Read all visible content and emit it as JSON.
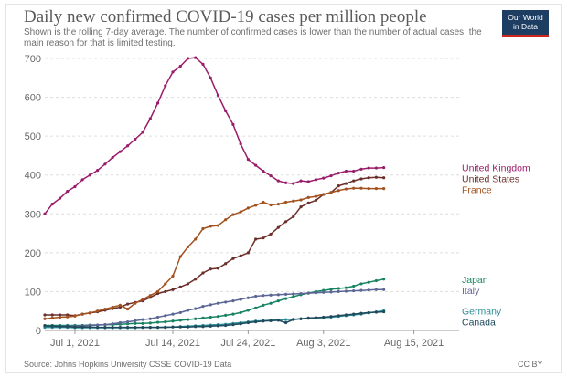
{
  "header": {
    "title": "Daily new confirmed COVID-19 cases per million people",
    "subtitle": "Shown is the rolling 7-day average. The number of confirmed cases is lower than the number of actual cases; the main reason for that is limited testing.",
    "logo_line1": "Our World",
    "logo_line2": "in Data"
  },
  "footer": {
    "source": "Source: Johns Hopkins University CSSE COVID-19 Data",
    "license": "CC BY"
  },
  "chart_data": {
    "type": "line",
    "title": "Daily new confirmed COVID-19 cases per million people",
    "xlabel": "",
    "ylabel": "",
    "ylim": [
      0,
      700
    ],
    "yticks": [
      0,
      100,
      200,
      300,
      400,
      500,
      600,
      700
    ],
    "xlim": [
      0,
      55
    ],
    "xticks": [
      {
        "x": 4,
        "label": "Jul 1, 2021"
      },
      {
        "x": 17,
        "label": "Jul 14, 2021"
      },
      {
        "x": 27,
        "label": "Jul 24, 2021"
      },
      {
        "x": 37,
        "label": "Aug 3, 2021"
      },
      {
        "x": 49,
        "label": "Aug 15, 2021"
      }
    ],
    "series": [
      {
        "name": "United Kingdom",
        "color": "#9a1d6a",
        "points": [
          [
            0,
            300
          ],
          [
            1,
            325
          ],
          [
            2,
            340
          ],
          [
            3,
            358
          ],
          [
            4,
            370
          ],
          [
            5,
            388
          ],
          [
            6,
            400
          ],
          [
            7,
            412
          ],
          [
            8,
            428
          ],
          [
            9,
            445
          ],
          [
            10,
            460
          ],
          [
            11,
            475
          ],
          [
            12,
            492
          ],
          [
            13,
            510
          ],
          [
            14,
            545
          ],
          [
            15,
            585
          ],
          [
            16,
            630
          ],
          [
            17,
            665
          ],
          [
            18,
            680
          ],
          [
            19,
            700
          ],
          [
            20,
            702
          ],
          [
            21,
            685
          ],
          [
            22,
            650
          ],
          [
            23,
            605
          ],
          [
            24,
            565
          ],
          [
            25,
            530
          ],
          [
            26,
            480
          ],
          [
            27,
            440
          ],
          [
            28,
            425
          ],
          [
            29,
            410
          ],
          [
            30,
            398
          ],
          [
            31,
            385
          ],
          [
            32,
            380
          ],
          [
            33,
            378
          ],
          [
            34,
            385
          ],
          [
            35,
            383
          ],
          [
            36,
            388
          ],
          [
            37,
            392
          ],
          [
            38,
            398
          ],
          [
            39,
            405
          ],
          [
            40,
            410
          ],
          [
            41,
            410
          ],
          [
            42,
            415
          ],
          [
            43,
            418
          ],
          [
            44,
            418
          ],
          [
            45,
            419
          ]
        ]
      },
      {
        "name": "United States",
        "color": "#6b2f2a",
        "points": [
          [
            0,
            40
          ],
          [
            1,
            40
          ],
          [
            2,
            40
          ],
          [
            3,
            40
          ],
          [
            4,
            38
          ],
          [
            5,
            42
          ],
          [
            6,
            45
          ],
          [
            7,
            48
          ],
          [
            8,
            52
          ],
          [
            9,
            56
          ],
          [
            10,
            60
          ],
          [
            11,
            68
          ],
          [
            12,
            72
          ],
          [
            13,
            76
          ],
          [
            14,
            85
          ],
          [
            15,
            95
          ],
          [
            16,
            100
          ],
          [
            17,
            105
          ],
          [
            18,
            112
          ],
          [
            19,
            120
          ],
          [
            20,
            132
          ],
          [
            21,
            148
          ],
          [
            22,
            158
          ],
          [
            23,
            160
          ],
          [
            24,
            172
          ],
          [
            25,
            185
          ],
          [
            26,
            192
          ],
          [
            27,
            200
          ],
          [
            28,
            235
          ],
          [
            29,
            238
          ],
          [
            30,
            248
          ],
          [
            31,
            265
          ],
          [
            32,
            280
          ],
          [
            33,
            293
          ],
          [
            34,
            318
          ],
          [
            35,
            328
          ],
          [
            36,
            335
          ],
          [
            37,
            350
          ],
          [
            38,
            355
          ],
          [
            39,
            372
          ],
          [
            40,
            378
          ],
          [
            41,
            385
          ],
          [
            42,
            390
          ],
          [
            43,
            393
          ],
          [
            44,
            394
          ],
          [
            45,
            393
          ]
        ]
      },
      {
        "name": "France",
        "color": "#a2511f",
        "points": [
          [
            0,
            30
          ],
          [
            1,
            32
          ],
          [
            2,
            34
          ],
          [
            3,
            35
          ],
          [
            4,
            37
          ],
          [
            5,
            42
          ],
          [
            6,
            45
          ],
          [
            7,
            50
          ],
          [
            8,
            55
          ],
          [
            9,
            60
          ],
          [
            10,
            65
          ],
          [
            11,
            55
          ],
          [
            12,
            70
          ],
          [
            13,
            80
          ],
          [
            14,
            90
          ],
          [
            15,
            100
          ],
          [
            16,
            120
          ],
          [
            17,
            140
          ],
          [
            18,
            190
          ],
          [
            19,
            215
          ],
          [
            20,
            235
          ],
          [
            21,
            262
          ],
          [
            22,
            268
          ],
          [
            23,
            270
          ],
          [
            24,
            285
          ],
          [
            25,
            298
          ],
          [
            26,
            305
          ],
          [
            27,
            315
          ],
          [
            28,
            322
          ],
          [
            29,
            330
          ],
          [
            30,
            323
          ],
          [
            31,
            325
          ],
          [
            32,
            330
          ],
          [
            33,
            333
          ],
          [
            34,
            336
          ],
          [
            35,
            342
          ],
          [
            36,
            345
          ],
          [
            37,
            350
          ],
          [
            38,
            355
          ],
          [
            39,
            360
          ],
          [
            40,
            364
          ],
          [
            41,
            366
          ],
          [
            42,
            366
          ],
          [
            43,
            365
          ],
          [
            44,
            365
          ],
          [
            45,
            365
          ]
        ]
      },
      {
        "name": "Japan",
        "color": "#178363",
        "points": [
          [
            0,
            13
          ],
          [
            1,
            13
          ],
          [
            2,
            13
          ],
          [
            3,
            13
          ],
          [
            4,
            13
          ],
          [
            5,
            13
          ],
          [
            6,
            14
          ],
          [
            7,
            14
          ],
          [
            8,
            15
          ],
          [
            9,
            15
          ],
          [
            10,
            16
          ],
          [
            11,
            17
          ],
          [
            12,
            18
          ],
          [
            13,
            18
          ],
          [
            14,
            19
          ],
          [
            15,
            21
          ],
          [
            16,
            22
          ],
          [
            17,
            24
          ],
          [
            18,
            26
          ],
          [
            19,
            28
          ],
          [
            20,
            30
          ],
          [
            21,
            32
          ],
          [
            22,
            34
          ],
          [
            23,
            36
          ],
          [
            24,
            39
          ],
          [
            25,
            42
          ],
          [
            26,
            46
          ],
          [
            27,
            52
          ],
          [
            28,
            58
          ],
          [
            29,
            65
          ],
          [
            30,
            70
          ],
          [
            31,
            76
          ],
          [
            32,
            82
          ],
          [
            33,
            87
          ],
          [
            34,
            92
          ],
          [
            35,
            96
          ],
          [
            36,
            100
          ],
          [
            37,
            103
          ],
          [
            38,
            106
          ],
          [
            39,
            108
          ],
          [
            40,
            110
          ],
          [
            41,
            114
          ],
          [
            42,
            120
          ],
          [
            43,
            124
          ],
          [
            44,
            128
          ],
          [
            45,
            132
          ]
        ]
      },
      {
        "name": "Italy",
        "color": "#5c6695",
        "points": [
          [
            0,
            10
          ],
          [
            1,
            10
          ],
          [
            2,
            10
          ],
          [
            3,
            11
          ],
          [
            4,
            11
          ],
          [
            5,
            12
          ],
          [
            6,
            13
          ],
          [
            7,
            14
          ],
          [
            8,
            15
          ],
          [
            9,
            17
          ],
          [
            10,
            20
          ],
          [
            11,
            22
          ],
          [
            12,
            25
          ],
          [
            13,
            28
          ],
          [
            14,
            30
          ],
          [
            15,
            34
          ],
          [
            16,
            38
          ],
          [
            17,
            42
          ],
          [
            18,
            46
          ],
          [
            19,
            52
          ],
          [
            20,
            56
          ],
          [
            21,
            62
          ],
          [
            22,
            66
          ],
          [
            23,
            70
          ],
          [
            24,
            73
          ],
          [
            25,
            76
          ],
          [
            26,
            80
          ],
          [
            27,
            84
          ],
          [
            28,
            88
          ],
          [
            29,
            90
          ],
          [
            30,
            91
          ],
          [
            31,
            92
          ],
          [
            32,
            93
          ],
          [
            33,
            94
          ],
          [
            34,
            95
          ],
          [
            35,
            96
          ],
          [
            36,
            97
          ],
          [
            37,
            98
          ],
          [
            38,
            99
          ],
          [
            39,
            100
          ],
          [
            40,
            101
          ],
          [
            41,
            102
          ],
          [
            42,
            103
          ],
          [
            43,
            104
          ],
          [
            44,
            105
          ],
          [
            45,
            105
          ]
        ]
      },
      {
        "name": "Germany",
        "color": "#2e8e99",
        "points": [
          [
            0,
            8
          ],
          [
            1,
            8
          ],
          [
            2,
            8
          ],
          [
            3,
            8
          ],
          [
            4,
            7
          ],
          [
            5,
            7
          ],
          [
            6,
            7
          ],
          [
            7,
            7
          ],
          [
            8,
            7
          ],
          [
            9,
            7
          ],
          [
            10,
            7
          ],
          [
            11,
            7
          ],
          [
            12,
            7
          ],
          [
            13,
            8
          ],
          [
            14,
            8
          ],
          [
            15,
            8
          ],
          [
            16,
            9
          ],
          [
            17,
            9
          ],
          [
            18,
            10
          ],
          [
            19,
            11
          ],
          [
            20,
            12
          ],
          [
            21,
            13
          ],
          [
            22,
            14
          ],
          [
            23,
            15
          ],
          [
            24,
            16
          ],
          [
            25,
            18
          ],
          [
            26,
            20
          ],
          [
            27,
            22
          ],
          [
            28,
            24
          ],
          [
            29,
            25
          ],
          [
            30,
            26
          ],
          [
            31,
            27
          ],
          [
            32,
            28
          ],
          [
            33,
            29
          ],
          [
            34,
            30
          ],
          [
            35,
            31
          ],
          [
            36,
            32
          ],
          [
            37,
            33
          ],
          [
            38,
            34
          ],
          [
            39,
            36
          ],
          [
            40,
            38
          ],
          [
            41,
            40
          ],
          [
            42,
            42
          ],
          [
            43,
            45
          ],
          [
            44,
            48
          ],
          [
            45,
            51
          ]
        ]
      },
      {
        "name": "Canada",
        "color": "#1f4a5c",
        "points": [
          [
            0,
            12
          ],
          [
            1,
            11
          ],
          [
            2,
            10
          ],
          [
            3,
            10
          ],
          [
            4,
            9
          ],
          [
            5,
            9
          ],
          [
            6,
            9
          ],
          [
            7,
            8
          ],
          [
            8,
            8
          ],
          [
            9,
            8
          ],
          [
            10,
            8
          ],
          [
            11,
            8
          ],
          [
            12,
            8
          ],
          [
            13,
            8
          ],
          [
            14,
            8
          ],
          [
            15,
            8
          ],
          [
            16,
            8
          ],
          [
            17,
            9
          ],
          [
            18,
            9
          ],
          [
            19,
            9
          ],
          [
            20,
            10
          ],
          [
            21,
            10
          ],
          [
            22,
            11
          ],
          [
            23,
            12
          ],
          [
            24,
            13
          ],
          [
            25,
            15
          ],
          [
            26,
            17
          ],
          [
            27,
            20
          ],
          [
            28,
            22
          ],
          [
            29,
            24
          ],
          [
            30,
            25
          ],
          [
            31,
            26
          ],
          [
            32,
            20
          ],
          [
            33,
            28
          ],
          [
            34,
            30
          ],
          [
            35,
            32
          ],
          [
            36,
            33
          ],
          [
            37,
            34
          ],
          [
            38,
            36
          ],
          [
            39,
            38
          ],
          [
            40,
            40
          ],
          [
            41,
            42
          ],
          [
            42,
            44
          ],
          [
            43,
            46
          ],
          [
            44,
            47
          ],
          [
            45,
            48
          ]
        ]
      }
    ]
  }
}
